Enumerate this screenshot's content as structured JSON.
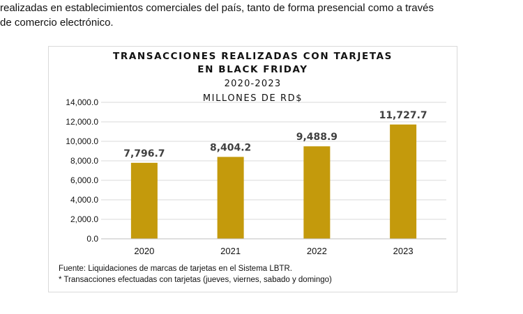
{
  "document": {
    "line1": "realizadas en establecimientos comerciales del país, tanto de forma presencial como a través",
    "line2": "de comercio electrónico."
  },
  "chart_data": {
    "type": "bar",
    "title_line1": "TRANSACCIONES REALIZADAS CON TARJETAS",
    "title_line2": "EN BLACK FRIDAY",
    "subtitle_line1": "2020-2023",
    "subtitle_line2": "MILLONES DE RD$",
    "categories": [
      "2020",
      "2021",
      "2022",
      "2023"
    ],
    "values": [
      7796.7,
      8404.2,
      9488.9,
      11727.7
    ],
    "data_labels": [
      "7,796.7",
      "8,404.2",
      "9,488.9",
      "11,727.7"
    ],
    "ylim": [
      0,
      14000
    ],
    "yticks": [
      0,
      2000,
      4000,
      6000,
      8000,
      10000,
      12000,
      14000
    ],
    "ytick_labels": [
      "0.0",
      "2,000.0",
      "4,000.0",
      "6,000.0",
      "8,000.0",
      "10,000.0",
      "12,000.0",
      "14,000.0"
    ],
    "grid": true,
    "bar_color": "#c49a0c",
    "grid_color": "#d9d9d9",
    "notes": [
      "Fuente: Liquidaciones de marcas de tarjetas en el Sistema LBTR.",
      "* Transacciones efectuadas con tarjetas (jueves, viernes, sabado y domingo)"
    ]
  }
}
